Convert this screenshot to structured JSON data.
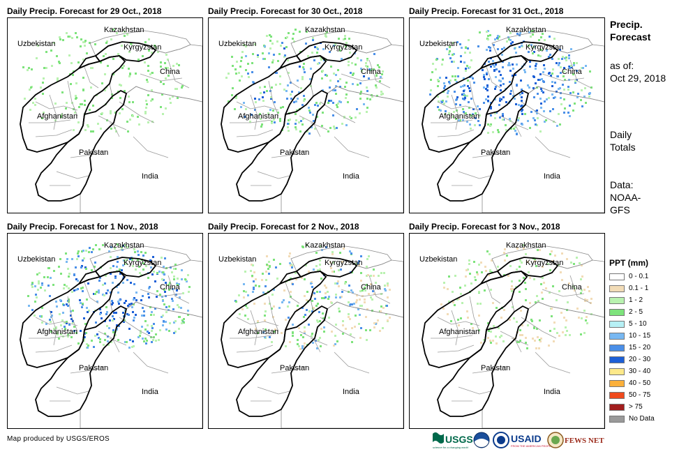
{
  "panels": [
    {
      "title": "Daily Precip. Forecast for 29 Oct., 2018"
    },
    {
      "title": "Daily Precip. Forecast for 30 Oct., 2018"
    },
    {
      "title": "Daily Precip. Forecast for 31 Oct., 2018"
    },
    {
      "title": "Daily Precip. Forecast for 1 Nov., 2018"
    },
    {
      "title": "Daily Precip. Forecast for 2 Nov., 2018"
    },
    {
      "title": "Daily Precip. Forecast for 3 Nov., 2018"
    }
  ],
  "map_labels": {
    "kazakhstan": "Kazakhstan",
    "uzbekistan": "Uzbekistan",
    "kyrgyzstan": "Kyrgyzstan",
    "china": "China",
    "afghanistan": "Afghanistan",
    "pakistan": "Pakistan",
    "india": "India"
  },
  "side_info": {
    "title_line1": "Precip.",
    "title_line2": "Forecast",
    "asof_line1": "as of:",
    "asof_line2": "Oct 29, 2018",
    "totals_line1": "Daily",
    "totals_line2": "Totals",
    "data_line1": "Data:",
    "data_line2": "NOAA-",
    "data_line3": "GFS"
  },
  "legend": {
    "title": "PPT (mm)",
    "items": [
      {
        "label": "0 - 0.1",
        "color": "#ffffff"
      },
      {
        "label": "0.1 - 1",
        "color": "#f2dcb7"
      },
      {
        "label": "1 - 2",
        "color": "#b9f2b0"
      },
      {
        "label": "2 - 5",
        "color": "#7ee37c"
      },
      {
        "label": "5 - 10",
        "color": "#b6f0f5"
      },
      {
        "label": "10 - 15",
        "color": "#78b8f2"
      },
      {
        "label": "15 - 20",
        "color": "#4a8fe8"
      },
      {
        "label": "20 - 30",
        "color": "#1d5fd6"
      },
      {
        "label": "30 - 40",
        "color": "#fde98a"
      },
      {
        "label": "40 - 50",
        "color": "#fbb03b"
      },
      {
        "label": "50 - 75",
        "color": "#f04a1d"
      },
      {
        "label": "> 75",
        "color": "#a21d1d"
      },
      {
        "label": "No Data",
        "color": "#9a9a9a"
      }
    ]
  },
  "credit": "Map produced by USGS/EROS",
  "logos": {
    "usgs": "USGS",
    "usgs_tagline": "science for a changing world",
    "usaid": "USAID",
    "usaid_tagline": "FROM THE AMERICAN PEOPLE",
    "fewsnet": "FEWS NET"
  },
  "precip_intensity": [
    {
      "green": 0.35,
      "blue": 0.0,
      "dark": 0.0,
      "tan": 0.3
    },
    {
      "green": 0.55,
      "blue": 0.25,
      "dark": 0.05,
      "tan": 0.5
    },
    {
      "green": 0.7,
      "blue": 0.75,
      "dark": 0.35,
      "tan": 0.7
    },
    {
      "green": 0.7,
      "blue": 0.6,
      "dark": 0.25,
      "tan": 0.6
    },
    {
      "green": 0.4,
      "blue": 0.2,
      "dark": 0.0,
      "tan": 0.55
    },
    {
      "green": 0.2,
      "blue": 0.0,
      "dark": 0.0,
      "tan": 0.35
    }
  ]
}
